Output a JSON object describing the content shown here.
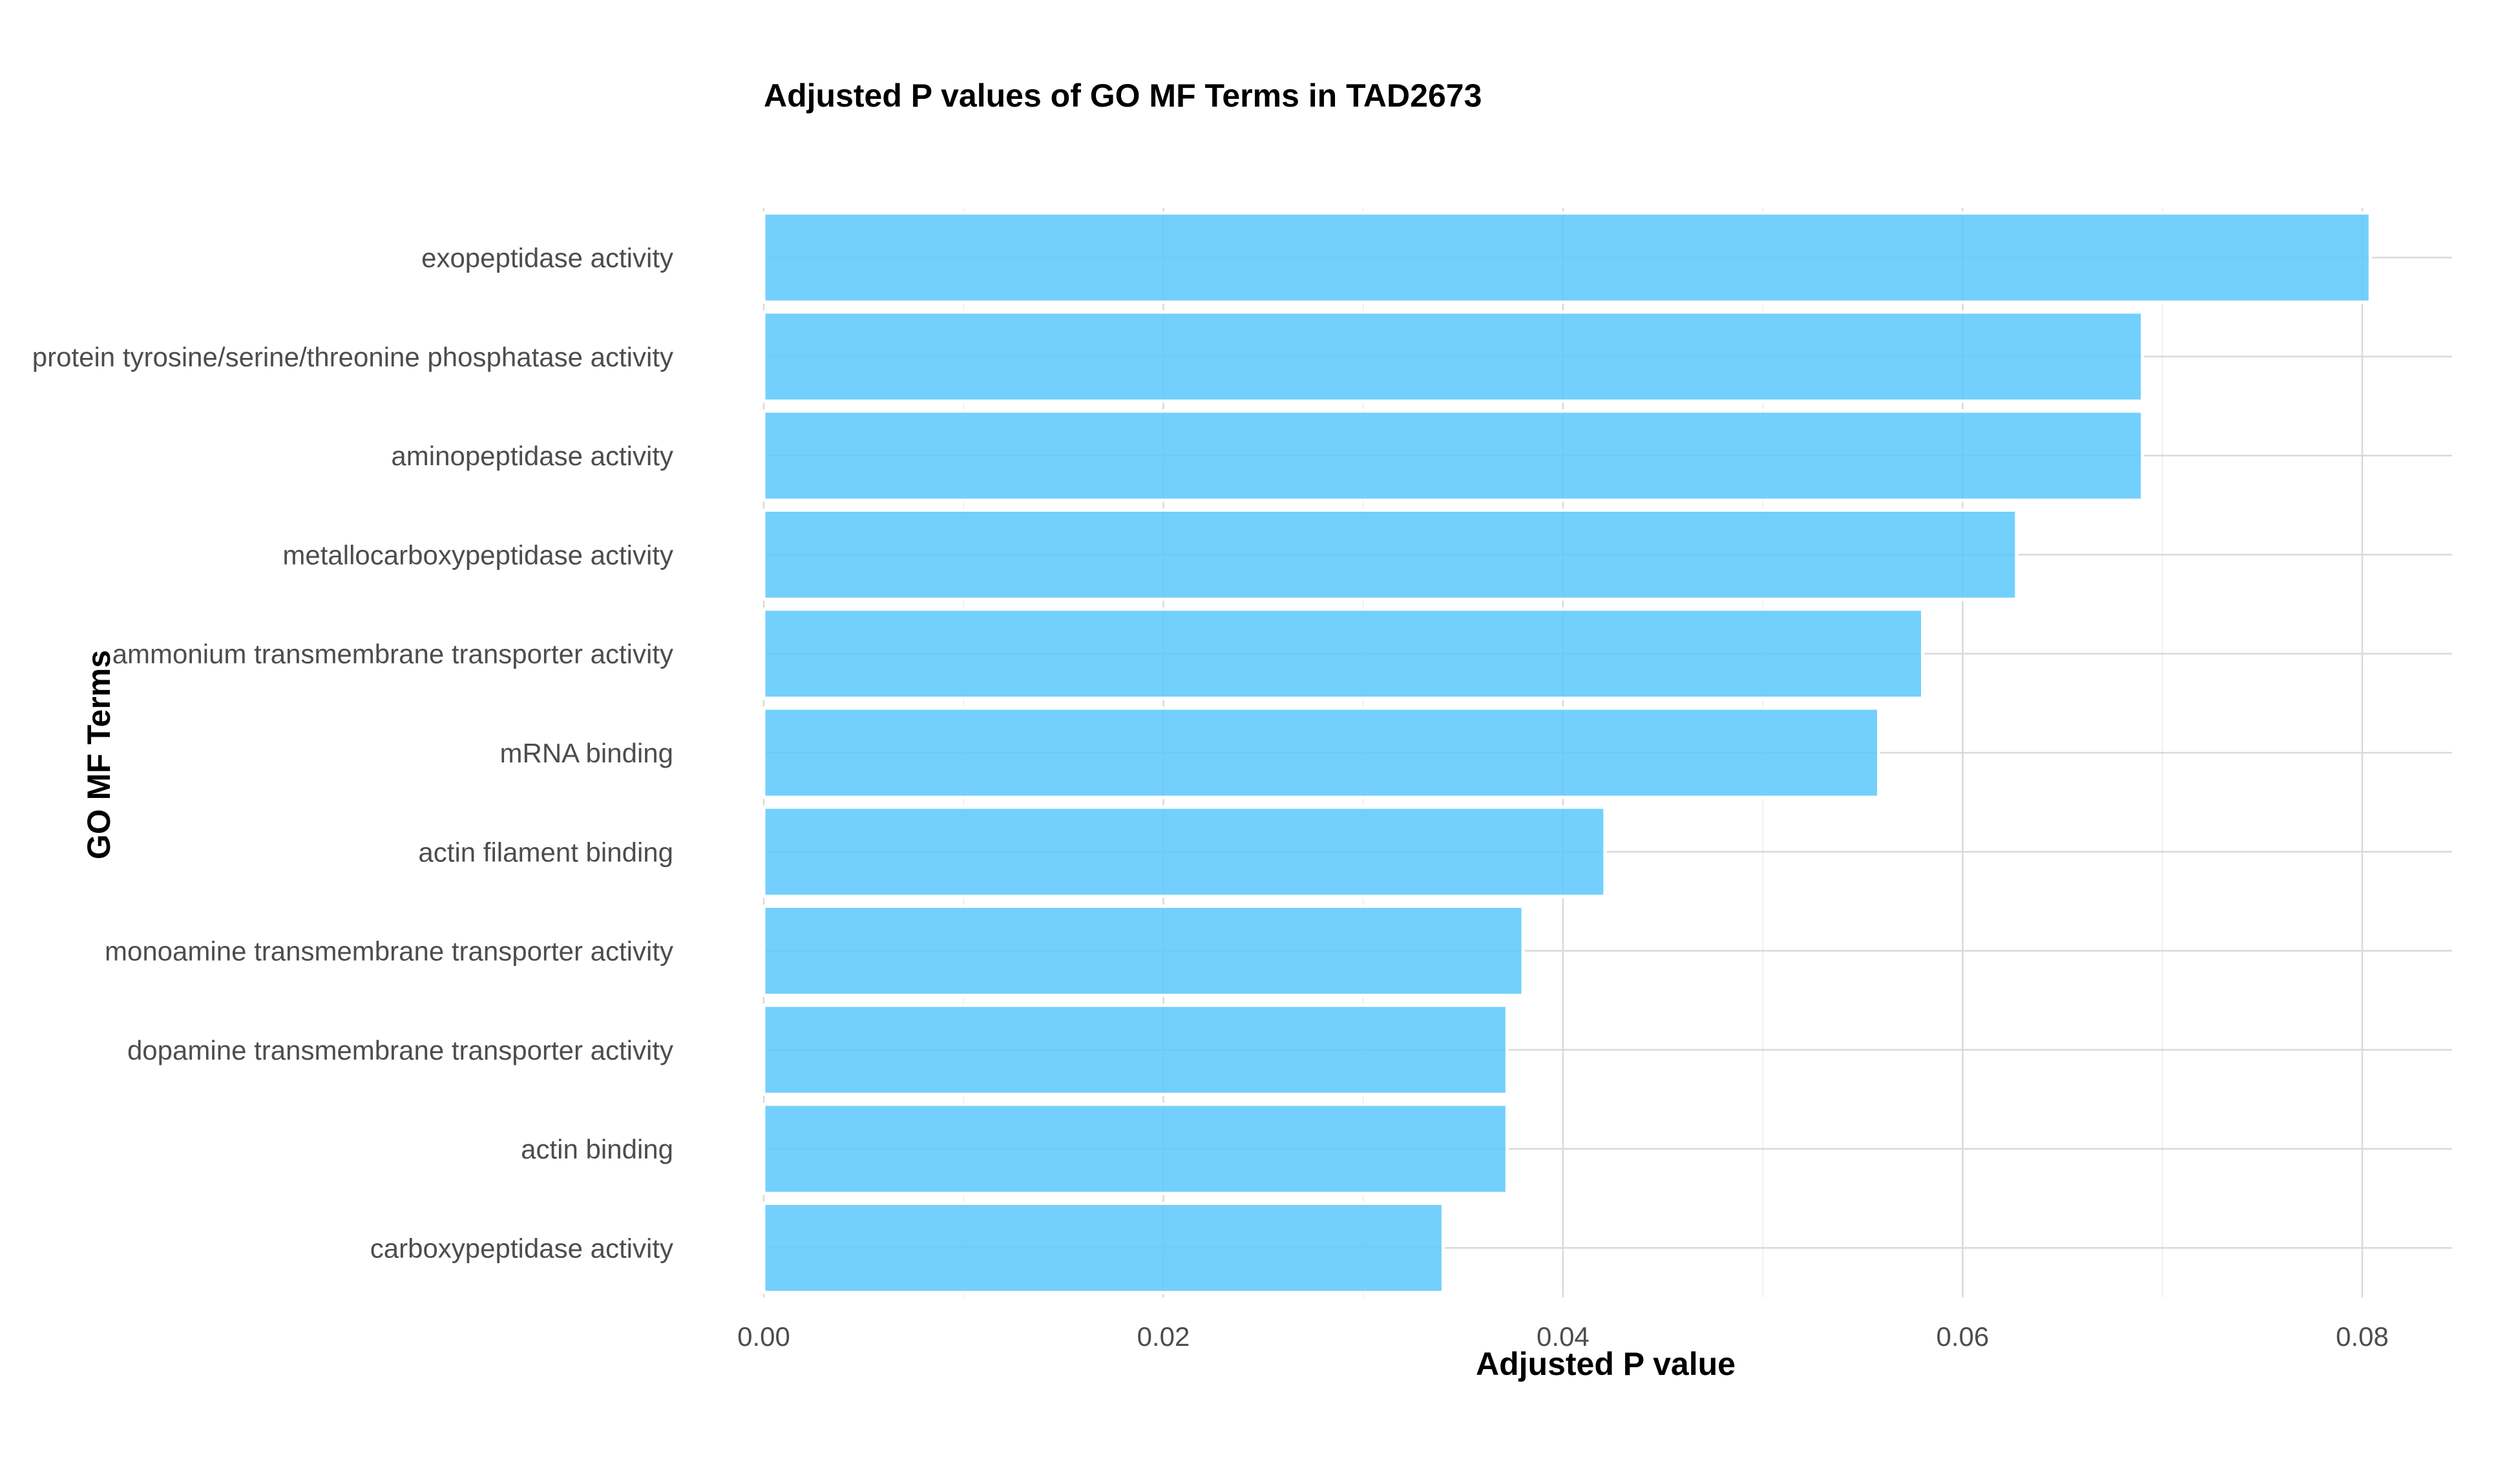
{
  "chart_data": {
    "type": "bar",
    "orientation": "horizontal",
    "title": "Adjusted P values of GO MF Terms in TAD2673",
    "xlabel": "Adjusted P value",
    "ylabel": "GO MF Terms",
    "categories": [
      "exopeptidase activity",
      "protein tyrosine/serine/threonine phosphatase activity",
      "aminopeptidase activity",
      "metallocarboxypeptidase activity",
      "ammonium transmembrane transporter activity",
      "mRNA binding",
      "actin filament binding",
      "monoamine transmembrane transporter activity",
      "dopamine transmembrane transporter activity",
      "actin binding",
      "carboxypeptidase activity"
    ],
    "values": [
      0.0804,
      0.069,
      0.069,
      0.0627,
      0.058,
      0.0558,
      0.0421,
      0.038,
      0.0372,
      0.0372,
      0.034
    ],
    "xlim": [
      0,
      0.0845
    ],
    "xticks": [
      0.0,
      0.02,
      0.04,
      0.06,
      0.08
    ],
    "xtick_labels": [
      "0.00",
      "0.02",
      "0.04",
      "0.06",
      "0.08"
    ],
    "bar_color": "#5BC8FB",
    "bar_outline_color": "#FFFFFF",
    "grid": true,
    "legend": "none"
  }
}
